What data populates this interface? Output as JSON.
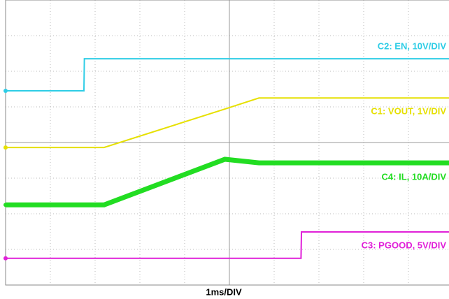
{
  "chart_data": {
    "type": "line",
    "x_label": "1ms/DIV",
    "x": [
      0,
      1.75,
      1.76,
      2.2,
      4.9,
      5.66,
      6.6,
      6.61,
      10
    ],
    "xlim": [
      0,
      10
    ],
    "ylim": [
      0,
      8
    ],
    "grid": true,
    "series": [
      {
        "name": "C2: EN, 10V/DIV",
        "color": "#2ecde6",
        "values": [
          5.45,
          5.45,
          6.35,
          6.35,
          6.35,
          6.35,
          6.35,
          6.35,
          6.35
        ]
      },
      {
        "name": "C1: VOUT, 1V/DIV",
        "color": "#e6e000",
        "values": [
          3.86,
          3.86,
          3.86,
          3.86,
          4.94,
          5.25,
          5.25,
          5.25,
          5.25
        ]
      },
      {
        "name": "C4: IL, 10A/DIV",
        "color": "#22dd22",
        "values": [
          2.25,
          2.25,
          2.25,
          2.25,
          3.53,
          3.43,
          3.43,
          3.43,
          3.43
        ]
      },
      {
        "name": "C3: PGOOD, 5V/DIV",
        "color": "#e020d8",
        "values": [
          0.75,
          0.75,
          0.75,
          0.75,
          0.75,
          0.75,
          0.75,
          1.49,
          1.49
        ]
      }
    ]
  }
}
